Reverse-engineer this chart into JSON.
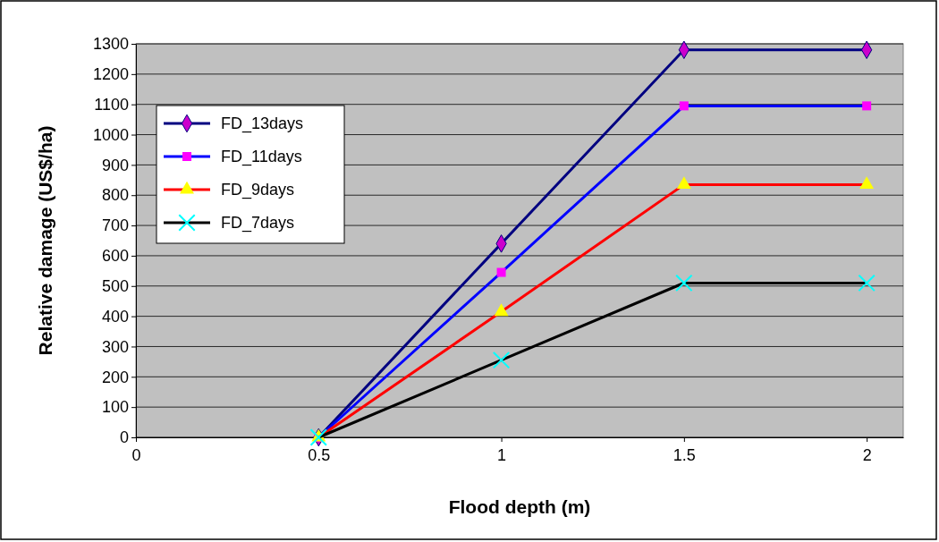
{
  "chart_data": {
    "type": "line",
    "xlabel": "Flood depth (m)",
    "ylabel": "Relative damage (US$/ha)",
    "x": [
      0.5,
      1,
      1.5,
      2
    ],
    "series": [
      {
        "name": "FD_13days",
        "color": "#000080",
        "marker": "diamond",
        "colors": [
          "#cc00cc",
          "#cc00cc",
          "#cc00cc",
          "#cc00cc"
        ],
        "values": [
          0,
          640,
          1280,
          1280
        ]
      },
      {
        "name": "FD_11days",
        "color": "#0000ff",
        "marker": "square",
        "colors": [
          "#ff00ff",
          "#ff00ff",
          "#ff00ff",
          "#ff00ff"
        ],
        "values": [
          0,
          545,
          1095,
          1095
        ]
      },
      {
        "name": "FD_9days",
        "color": "#ff0000",
        "marker": "triangle",
        "colors": [
          "#ffff00",
          "#ffff00",
          "#ffff00",
          "#ffff00"
        ],
        "values": [
          0,
          415,
          835,
          835
        ]
      },
      {
        "name": "FD_7days",
        "color": "#000000",
        "marker": "cross",
        "colors": [
          "#00ffff",
          "#00ffff",
          "#00ffff",
          "#00ffff"
        ],
        "values": [
          0,
          255,
          510,
          510
        ]
      }
    ],
    "xlim": [
      0,
      2.1
    ],
    "xticks": [
      0,
      0.5,
      1,
      1.5,
      2
    ],
    "ylim": [
      0,
      1300
    ],
    "yticks": [
      0,
      100,
      200,
      300,
      400,
      500,
      600,
      700,
      800,
      900,
      1000,
      1100,
      1200,
      1300
    ],
    "grid": "y",
    "legend": "top left",
    "line_style": "solid"
  }
}
